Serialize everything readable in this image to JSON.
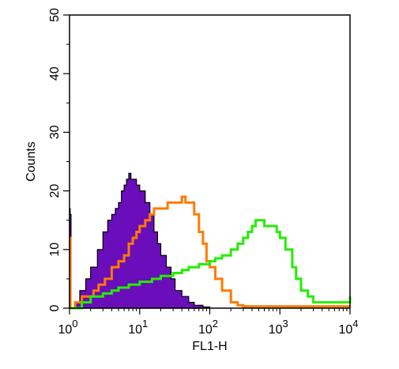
{
  "chart_data": {
    "type": "area",
    "xlabel": "FL1-H",
    "ylabel": "Counts",
    "x_scale": "log",
    "xlim": [
      1,
      10000
    ],
    "ylim": [
      0,
      50
    ],
    "x_ticks": [
      {
        "value": 1,
        "base": "10",
        "exp": "0"
      },
      {
        "value": 10,
        "base": "10",
        "exp": "1"
      },
      {
        "value": 100,
        "base": "10",
        "exp": "2"
      },
      {
        "value": 1000,
        "base": "10",
        "exp": "3"
      },
      {
        "value": 10000,
        "base": "10",
        "exp": "4"
      }
    ],
    "y_ticks": [
      "0",
      "10",
      "20",
      "30",
      "40",
      "50"
    ],
    "grid": false,
    "series": [
      {
        "color": "#6a0dbb",
        "style": "filled",
        "points": [
          [
            1.0,
            17
          ],
          [
            1.02,
            16
          ],
          [
            1.05,
            0
          ],
          [
            1.2,
            1
          ],
          [
            1.4,
            3
          ],
          [
            1.7,
            5
          ],
          [
            2.0,
            7
          ],
          [
            2.5,
            10
          ],
          [
            3.0,
            13
          ],
          [
            3.5,
            15
          ],
          [
            4.0,
            16
          ],
          [
            4.5,
            17
          ],
          [
            5.0,
            18
          ],
          [
            5.5,
            20
          ],
          [
            6.0,
            21
          ],
          [
            6.5,
            22
          ],
          [
            7.0,
            23
          ],
          [
            7.5,
            22
          ],
          [
            8.0,
            22
          ],
          [
            9.0,
            21
          ],
          [
            10.0,
            20
          ],
          [
            12.0,
            18
          ],
          [
            14.0,
            16
          ],
          [
            16.0,
            13
          ],
          [
            18.0,
            11
          ],
          [
            20.0,
            9
          ],
          [
            24.0,
            7
          ],
          [
            28.0,
            5
          ],
          [
            32.0,
            3
          ],
          [
            40.0,
            2
          ],
          [
            50.0,
            1
          ],
          [
            60.0,
            0.5
          ],
          [
            80.0,
            0.2
          ],
          [
            100.0,
            0
          ]
        ]
      },
      {
        "color": "#ff7a00",
        "style": "line",
        "points": [
          [
            1.0,
            12
          ],
          [
            1.03,
            0
          ],
          [
            1.2,
            1
          ],
          [
            1.5,
            2
          ],
          [
            1.8,
            2
          ],
          [
            2.2,
            3
          ],
          [
            2.6,
            4
          ],
          [
            3.2,
            5
          ],
          [
            4.0,
            7
          ],
          [
            5.0,
            8
          ],
          [
            6.0,
            9
          ],
          [
            7.0,
            11
          ],
          [
            8.0,
            12
          ],
          [
            9.0,
            13
          ],
          [
            10.0,
            14
          ],
          [
            12.0,
            15
          ],
          [
            14.0,
            16
          ],
          [
            16.0,
            17
          ],
          [
            20.0,
            17
          ],
          [
            25.0,
            18
          ],
          [
            30.0,
            18
          ],
          [
            35.0,
            18
          ],
          [
            40.0,
            19
          ],
          [
            45.0,
            18
          ],
          [
            50.0,
            18
          ],
          [
            60.0,
            16
          ],
          [
            70.0,
            13
          ],
          [
            80.0,
            11
          ],
          [
            90.0,
            8
          ],
          [
            100.0,
            7
          ],
          [
            120.0,
            5
          ],
          [
            150.0,
            3
          ],
          [
            200.0,
            1
          ],
          [
            250.0,
            0.5
          ],
          [
            300.0,
            0.3
          ],
          [
            350.0,
            0.3
          ],
          [
            10000.0,
            0.3
          ]
        ]
      },
      {
        "color": "#22ee00",
        "style": "line",
        "points": [
          [
            1.0,
            0
          ],
          [
            1.5,
            1
          ],
          [
            2.0,
            2
          ],
          [
            3.0,
            2.5
          ],
          [
            4.0,
            3
          ],
          [
            5.0,
            3.5
          ],
          [
            7.0,
            4
          ],
          [
            10.0,
            4.5
          ],
          [
            15.0,
            5
          ],
          [
            20.0,
            5.5
          ],
          [
            30.0,
            6
          ],
          [
            40.0,
            6.5
          ],
          [
            50.0,
            7
          ],
          [
            70.0,
            7.5
          ],
          [
            100.0,
            8
          ],
          [
            120.0,
            8.5
          ],
          [
            150.0,
            9
          ],
          [
            200.0,
            10
          ],
          [
            250.0,
            11
          ],
          [
            300.0,
            12
          ],
          [
            350.0,
            13
          ],
          [
            400.0,
            14
          ],
          [
            450.0,
            15
          ],
          [
            500.0,
            15
          ],
          [
            600.0,
            14
          ],
          [
            700.0,
            14
          ],
          [
            800.0,
            14
          ],
          [
            900.0,
            13
          ],
          [
            1000.0,
            12
          ],
          [
            1200.0,
            10
          ],
          [
            1500.0,
            7
          ],
          [
            1700.0,
            5
          ],
          [
            2000.0,
            3
          ],
          [
            2500.0,
            2
          ],
          [
            3000.0,
            1
          ],
          [
            4000.0,
            1
          ],
          [
            5000.0,
            1
          ],
          [
            7000.0,
            1
          ],
          [
            9000.0,
            1
          ],
          [
            10000.0,
            2
          ]
        ]
      }
    ]
  }
}
